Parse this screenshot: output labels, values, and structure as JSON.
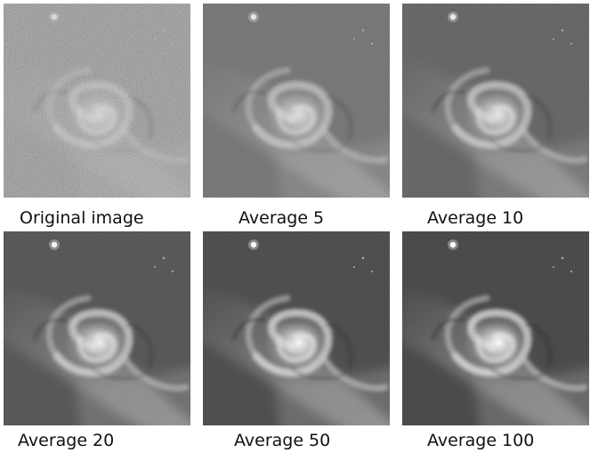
{
  "panels": [
    {
      "caption": "Original image",
      "noise": 0.55,
      "contrast": 0.25,
      "base": "#7a7a7a"
    },
    {
      "caption": "Average 5",
      "noise": 0.32,
      "contrast": 0.55,
      "base": "#5e5e5e"
    },
    {
      "caption": "Average 10",
      "noise": 0.22,
      "contrast": 0.7,
      "base": "#555555"
    },
    {
      "caption": "Average 20",
      "noise": 0.14,
      "contrast": 0.85,
      "base": "#4c4c4c"
    },
    {
      "caption": "Average 50",
      "noise": 0.08,
      "contrast": 0.95,
      "base": "#484848"
    },
    {
      "caption": "Average 100",
      "noise": 0.05,
      "contrast": 1.0,
      "base": "#464646"
    }
  ],
  "colors": {
    "background": "#ffffff",
    "caption": "#111111"
  }
}
